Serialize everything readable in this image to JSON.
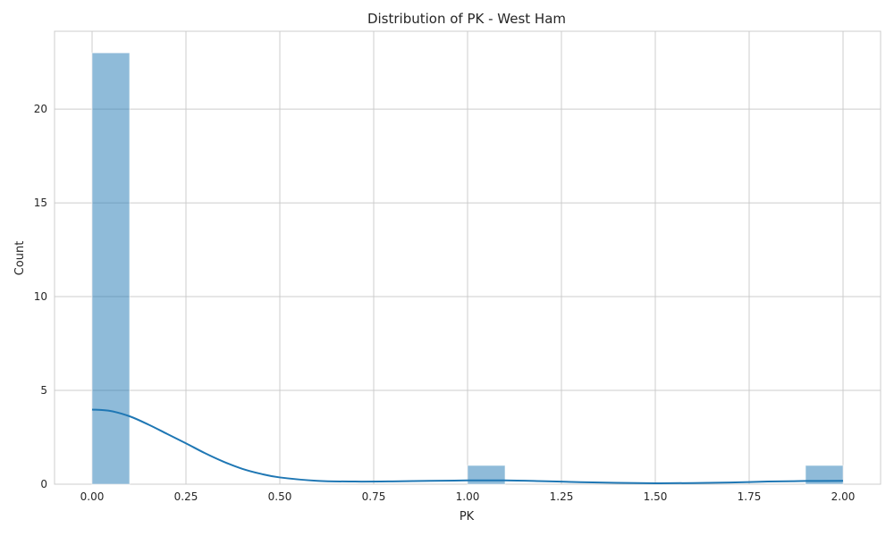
{
  "chart_data": {
    "type": "bar",
    "subtype": "histogram-with-kde",
    "title": "Distribution of PK - West Ham",
    "xlabel": "PK",
    "ylabel": "Count",
    "xlim": [
      -0.1,
      2.1
    ],
    "ylim": [
      0,
      24.15
    ],
    "grid": true,
    "legend": "none",
    "bar_color": "#1f77b4",
    "bar_opacity": 0.5,
    "line_color": "#1f77b4",
    "grid_color": "#cccccc",
    "x_ticks": [
      "0.00",
      "0.25",
      "0.50",
      "0.75",
      "1.00",
      "1.25",
      "1.50",
      "1.75",
      "2.00"
    ],
    "x_tick_values": [
      0,
      0.25,
      0.5,
      0.75,
      1.0,
      1.25,
      1.5,
      1.75,
      2.0
    ],
    "y_ticks": [
      "0",
      "5",
      "10",
      "15",
      "20"
    ],
    "y_tick_values": [
      0,
      5,
      10,
      15,
      20
    ],
    "bins": [
      {
        "x0": 0.0,
        "x1": 0.1,
        "count": 23
      },
      {
        "x0": 0.1,
        "x1": 0.2,
        "count": 0
      },
      {
        "x0": 0.2,
        "x1": 0.3,
        "count": 0
      },
      {
        "x0": 0.3,
        "x1": 0.4,
        "count": 0
      },
      {
        "x0": 0.4,
        "x1": 0.5,
        "count": 0
      },
      {
        "x0": 0.5,
        "x1": 0.6,
        "count": 0
      },
      {
        "x0": 0.6,
        "x1": 0.7,
        "count": 0
      },
      {
        "x0": 0.7,
        "x1": 0.8,
        "count": 0
      },
      {
        "x0": 0.8,
        "x1": 0.9,
        "count": 0
      },
      {
        "x0": 0.9,
        "x1": 1.0,
        "count": 0
      },
      {
        "x0": 1.0,
        "x1": 1.1,
        "count": 1
      },
      {
        "x0": 1.1,
        "x1": 1.2,
        "count": 0
      },
      {
        "x0": 1.2,
        "x1": 1.3,
        "count": 0
      },
      {
        "x0": 1.3,
        "x1": 1.4,
        "count": 0
      },
      {
        "x0": 1.4,
        "x1": 1.5,
        "count": 0
      },
      {
        "x0": 1.5,
        "x1": 1.6,
        "count": 0
      },
      {
        "x0": 1.6,
        "x1": 1.7,
        "count": 0
      },
      {
        "x0": 1.7,
        "x1": 1.8,
        "count": 0
      },
      {
        "x0": 1.8,
        "x1": 1.9,
        "count": 0
      },
      {
        "x0": 1.9,
        "x1": 2.0,
        "count": 1
      }
    ],
    "kde": {
      "x": [
        0.0,
        0.05,
        0.1,
        0.15,
        0.2,
        0.25,
        0.3,
        0.35,
        0.4,
        0.45,
        0.5,
        0.6,
        0.7,
        0.8,
        0.9,
        1.0,
        1.1,
        1.2,
        1.3,
        1.4,
        1.5,
        1.6,
        1.7,
        1.8,
        1.9,
        2.0
      ],
      "y": [
        3.98,
        3.9,
        3.62,
        3.18,
        2.68,
        2.18,
        1.66,
        1.2,
        0.82,
        0.55,
        0.36,
        0.18,
        0.14,
        0.15,
        0.18,
        0.2,
        0.2,
        0.16,
        0.11,
        0.07,
        0.05,
        0.06,
        0.09,
        0.14,
        0.17,
        0.18
      ]
    }
  }
}
